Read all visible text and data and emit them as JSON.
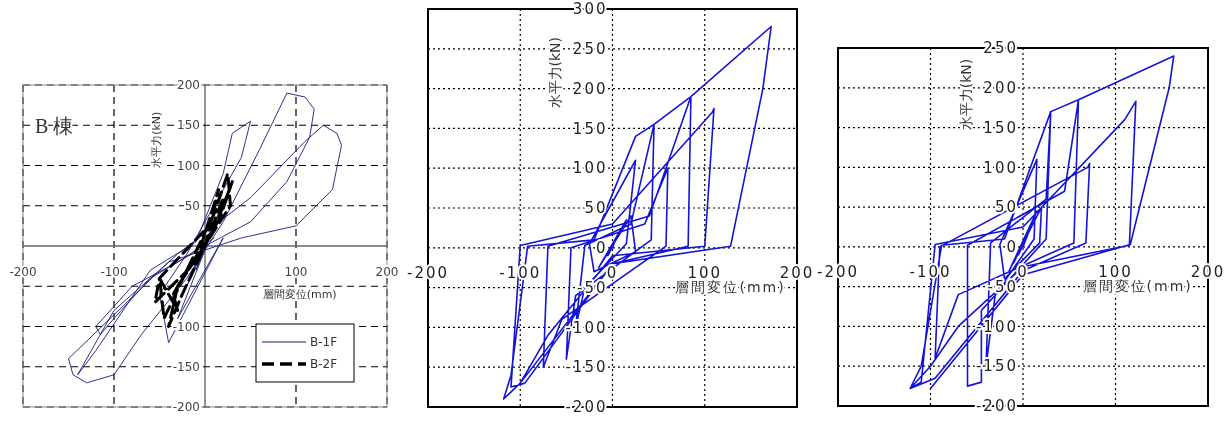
{
  "chart_data": [
    {
      "type": "line",
      "xlabel": "層間変位(mm)",
      "ylabel": "水平力(kN)",
      "annotations": [
        "B 棟"
      ],
      "xlim": [
        -200,
        200
      ],
      "ylim": [
        -200,
        200
      ],
      "xticks": [
        -200,
        -100,
        {
          "value": 0,
          "label": null
        },
        100,
        200
      ],
      "yticks": [
        -200,
        -150,
        -100,
        {
          "value": -50,
          "label": null
        },
        {
          "value": 0,
          "label": null
        },
        50,
        100,
        150,
        200
      ],
      "grid": true,
      "legend": "bottom right",
      "series": [
        {
          "name": "B-1F",
          "color": "#1a1a80",
          "line_style": "solid",
          "x": [
            0,
            10,
            -10,
            20,
            -20,
            30,
            -30,
            20,
            -40,
            -50,
            -20,
            40,
            50,
            30,
            20,
            -10,
            -60,
            -120,
            -140,
            -100,
            -30,
            50,
            110,
            130,
            145,
            150,
            140,
            100,
            40,
            -40,
            -150,
            -145,
            -130,
            -100,
            -70,
            -20,
            20,
            60,
            90,
            110,
            120,
            115,
            90,
            50,
            0,
            -60,
            -100,
            -115,
            -120,
            -80,
            -30,
            10
          ],
          "values": [
            0,
            30,
            -30,
            50,
            -50,
            80,
            -90,
            10,
            -120,
            -60,
            -10,
            110,
            155,
            140,
            90,
            5,
            -30,
            -130,
            -160,
            -80,
            -10,
            60,
            130,
            150,
            140,
            125,
            70,
            25,
            10,
            -20,
            -140,
            -160,
            -170,
            -160,
            -110,
            -40,
            30,
            120,
            190,
            185,
            170,
            135,
            80,
            30,
            0,
            -40,
            -90,
            -110,
            -100,
            -50,
            -20,
            10
          ]
        },
        {
          "name": "B-2F",
          "color": "#000000",
          "line_style": "dashed",
          "x": [
            0,
            20,
            15,
            30,
            10,
            -20,
            -35,
            -30,
            -50,
            -45,
            -20,
            10,
            25,
            28,
            5,
            -30,
            -40,
            -25,
            0,
            15,
            -10,
            -55,
            -50,
            0
          ],
          "values": [
            0,
            60,
            30,
            80,
            20,
            -30,
            -60,
            -80,
            -40,
            -90,
            -30,
            40,
            90,
            50,
            10,
            -50,
            -100,
            -60,
            0,
            70,
            -20,
            -70,
            -40,
            20
          ]
        }
      ]
    },
    {
      "type": "line",
      "xlabel": "層間変位(mm)",
      "ylabel": "水平力(kN)",
      "xlim": [
        -200,
        200
      ],
      "ylim": [
        -200,
        300
      ],
      "xticks": [
        -200,
        -100,
        0,
        100,
        200
      ],
      "yticks": [
        -200,
        -150,
        -100,
        -50,
        0,
        50,
        100,
        150,
        200,
        250,
        300
      ],
      "grid": true,
      "series": [
        {
          "color": "#1414d8",
          "line_style": "solid",
          "x": [
            0,
            5,
            -5,
            10,
            -10,
            15,
            -15,
            20,
            25,
            -20,
            -25,
            25,
            15,
            -30,
            -40,
            -30,
            20,
            45,
            42,
            -40,
            -50,
            -45,
            35,
            60,
            58,
            -55,
            -75,
            -70,
            40,
            85,
            82,
            0,
            -95,
            -110,
            -100,
            0,
            108,
            110,
            100,
            0,
            -70,
            -100,
            -118,
            -110,
            -92,
            -20,
            25,
            45,
            85,
            172,
            163,
            128,
            0,
            -100
          ],
          "values": [
            0,
            15,
            -10,
            25,
            -15,
            35,
            -25,
            40,
            -5,
            -30,
            5,
            110,
            5,
            -50,
            -100,
            3,
            30,
            155,
            10,
            -60,
            -140,
            0,
            30,
            100,
            2,
            -90,
            -150,
            2,
            40,
            190,
            2,
            -20,
            -170,
            -175,
            3,
            30,
            170,
            175,
            2,
            -10,
            -110,
            -170,
            -190,
            -160,
            2,
            10,
            140,
            155,
            190,
            278,
            200,
            2,
            -20,
            -170
          ]
        }
      ]
    },
    {
      "type": "line",
      "xlabel": "層間変位(mm)",
      "ylabel": "水平力(kN)",
      "xlim": [
        -200,
        200
      ],
      "ylim": [
        -200,
        250
      ],
      "xticks": [
        -200,
        -100,
        0,
        100,
        200
      ],
      "yticks": [
        -200,
        -150,
        -100,
        -50,
        0,
        50,
        100,
        150,
        200,
        250
      ],
      "grid": true,
      "series": [
        {
          "color": "#1414d8",
          "line_style": "solid",
          "x": [
            0,
            5,
            -5,
            10,
            -10,
            15,
            -15,
            20,
            18,
            -20,
            -25,
            15,
            12,
            -30,
            -40,
            -35,
            25,
            30,
            25,
            -45,
            -45,
            -60,
            -60,
            45,
            60,
            55,
            -70,
            -95,
            -90,
            70,
            72,
            68,
            0,
            -95,
            -122,
            -110,
            -95,
            0,
            110,
            122,
            115,
            0,
            -70,
            -100,
            -122,
            -110,
            -88,
            -20,
            30,
            60,
            163,
            158,
            116,
            0,
            -100
          ],
          "values": [
            0,
            15,
            -10,
            30,
            -20,
            45,
            -30,
            50,
            5,
            -40,
            3,
            110,
            10,
            -60,
            -150,
            5,
            60,
            170,
            10,
            -80,
            -170,
            -175,
            2,
            70,
            185,
            5,
            -60,
            -140,
            0,
            100,
            105,
            5,
            -30,
            -165,
            -178,
            -170,
            3,
            25,
            160,
            183,
            2,
            -25,
            -100,
            -150,
            -178,
            -150,
            2,
            10,
            170,
            185,
            240,
            200,
            3,
            -35,
            -178
          ]
        }
      ]
    }
  ]
}
